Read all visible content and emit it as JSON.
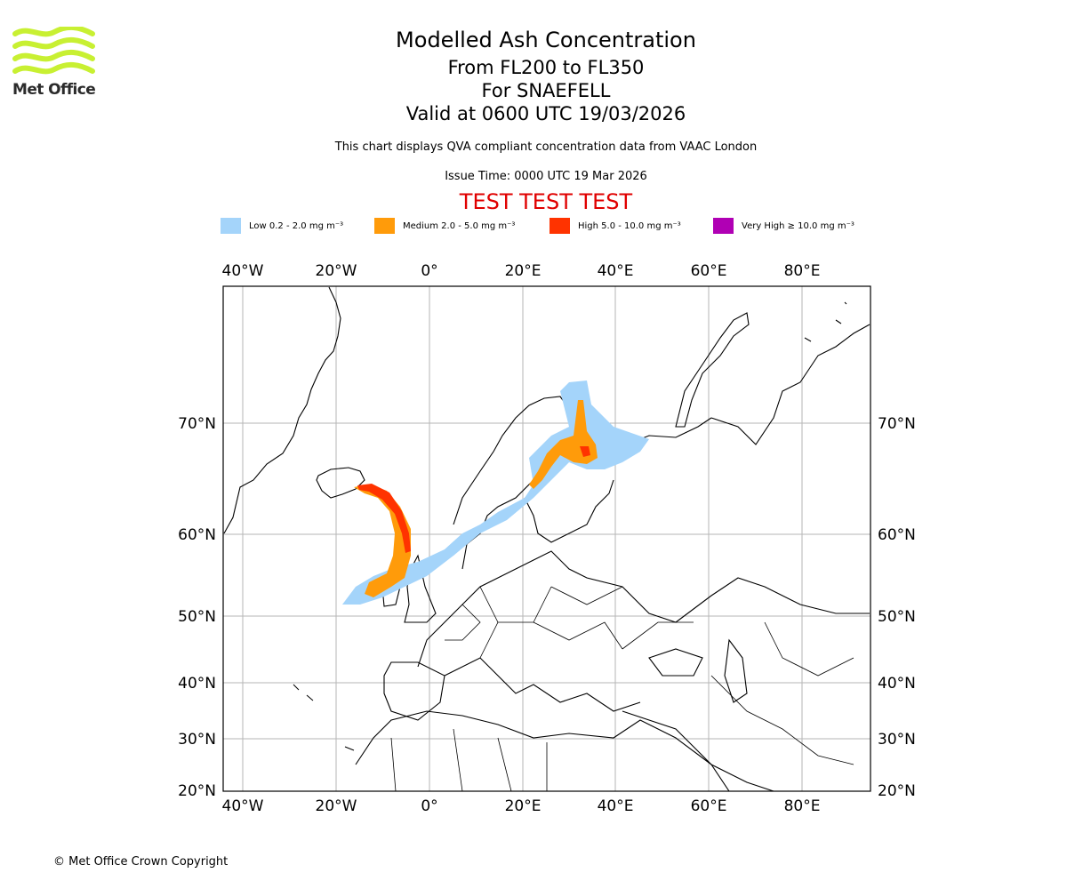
{
  "branding": {
    "logo_text": "Met Office",
    "copyright": "© Met Office Crown Copyright"
  },
  "header": {
    "title": "Modelled Ash Concentration",
    "subtitle_levels": "From FL200 to FL350",
    "subtitle_volcano": "For SNAEFELL",
    "subtitle_valid": "Valid at 0600 UTC 19/03/2026",
    "description": "This chart displays QVA compliant concentration data from VAAC London",
    "issue_time": "Issue Time: 0000 UTC 19 Mar 2026",
    "test_banner": "TEST TEST TEST"
  },
  "legend": [
    {
      "label": "Low 0.2 - 2.0 mg m⁻³",
      "color": "#a4d4fa"
    },
    {
      "label": "Medium 2.0 - 5.0 mg m⁻³",
      "color": "#ff9b0a"
    },
    {
      "label": "High 5.0 - 10.0 mg m⁻³",
      "color": "#ff3300"
    },
    {
      "label": "Very High ≥ 10.0 mg m⁻³",
      "color": "#b000b4"
    }
  ],
  "map": {
    "lon_ticks": [
      "40°W",
      "20°W",
      "0°",
      "20°E",
      "40°E",
      "60°E",
      "80°E"
    ],
    "lat_ticks": [
      "70°N",
      "60°N",
      "50°N",
      "40°N",
      "30°N",
      "20°N"
    ],
    "gridline_color": "#b5b5b5",
    "coast_color": "#000000",
    "logo_color": "#c8f032"
  }
}
